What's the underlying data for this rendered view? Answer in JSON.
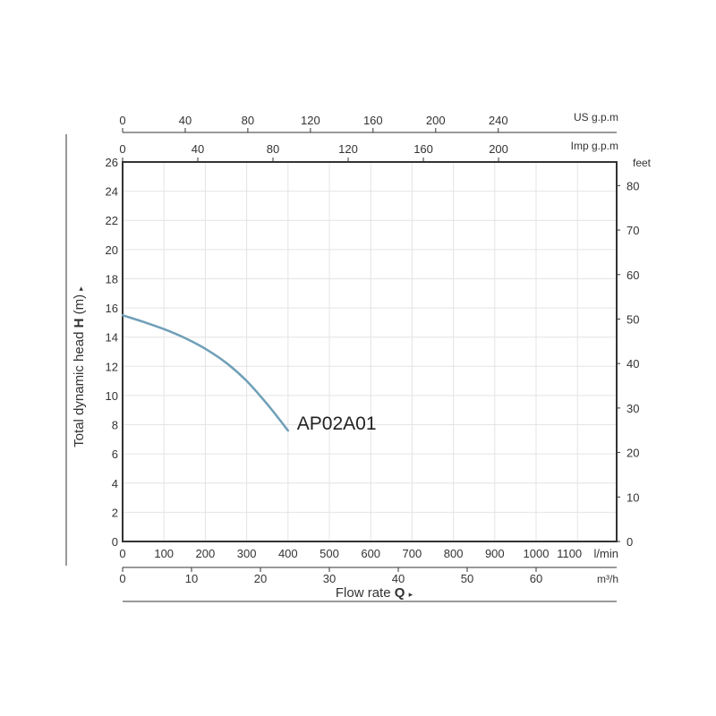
{
  "chart_data": {
    "type": "line",
    "ylabel": "Total dynamic head",
    "ylabel_symbol": "H",
    "ylabel_unit": "(m)",
    "xlabel": "Flow rate",
    "xlabel_symbol": "Q",
    "y_right_unit": "feet",
    "x_primary_unit": "l/min",
    "x_m3h_unit": "m³/h",
    "x_us_unit": "US g.p.m",
    "x_imp_unit": "Imp g.p.m",
    "ylim": [
      0,
      26
    ],
    "xlim": [
      0,
      1200
    ],
    "y_ticks": [
      0,
      2,
      4,
      6,
      8,
      10,
      12,
      14,
      16,
      18,
      20,
      22,
      24,
      26
    ],
    "y_right_ticks": [
      0,
      10,
      20,
      30,
      40,
      50,
      60,
      70,
      80
    ],
    "x_ticks": [
      0,
      100,
      200,
      300,
      400,
      500,
      600,
      700,
      800,
      900,
      1000,
      1100
    ],
    "x_m3h_ticks": [
      0,
      10,
      20,
      30,
      40,
      50,
      60
    ],
    "x_us_ticks": [
      0,
      40,
      80,
      120,
      160,
      200,
      240
    ],
    "x_imp_ticks": [
      0,
      40,
      80,
      120,
      160,
      200
    ],
    "grid": true,
    "series": [
      {
        "name": "AP02A01",
        "x": [
          0,
          50,
          100,
          150,
          200,
          250,
          300,
          350,
          400
        ],
        "y": [
          15.5,
          15.05,
          14.55,
          13.95,
          13.2,
          12.25,
          11.0,
          9.4,
          7.6
        ]
      }
    ],
    "colors": {
      "curve": "#6f9fb8",
      "frame": "#333333",
      "grid": "#e4e4e4"
    }
  }
}
